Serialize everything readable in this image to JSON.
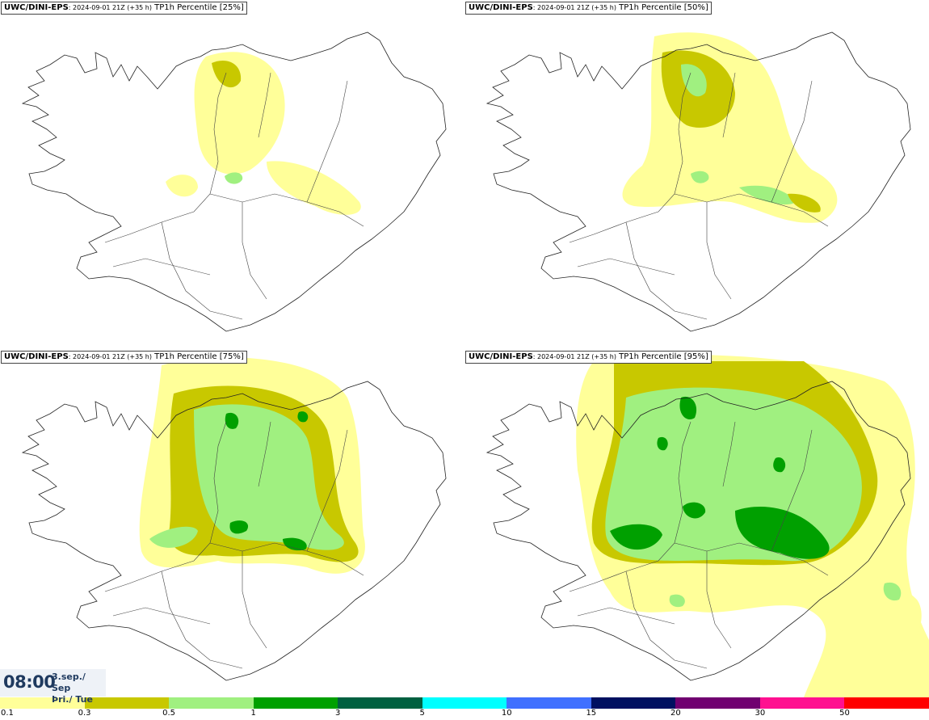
{
  "panels": [
    {
      "model": "UWC/DINI-EPS",
      "run_info": ": 2024-09-01 21Z (+35 h)",
      "field": " TP1h Percentile [25%]",
      "intensity": 1
    },
    {
      "model": "UWC/DINI-EPS",
      "run_info": ": 2024-09-01 21Z (+35 h)",
      "field": " TP1h Percentile [50%]",
      "intensity": 2
    },
    {
      "model": "UWC/DINI-EPS",
      "run_info": ": 2024-09-01 21Z (+35 h)",
      "field": " TP1h Percentile [75%]",
      "intensity": 3
    },
    {
      "model": "UWC/DINI-EPS",
      "run_info": ": 2024-09-01 21Z (+35 h)",
      "field": " TP1h Percentile [95%]",
      "intensity": 4
    }
  ],
  "valid_time": {
    "time": "08:00",
    "date_line1": "3.sep./ Sep",
    "date_line2": "Þri./ Tue"
  },
  "legend": {
    "ticks": [
      "0.1",
      "0.3",
      "0.5",
      "1",
      "3",
      "5",
      "10",
      "15",
      "20",
      "30",
      "50"
    ],
    "colors": [
      "#ffff99",
      "#c8c800",
      "#a0f080",
      "#00a000",
      "#006040",
      "#00ffff",
      "#4070ff",
      "#001060",
      "#700070",
      "#ff1090",
      "#ff0000"
    ]
  }
}
